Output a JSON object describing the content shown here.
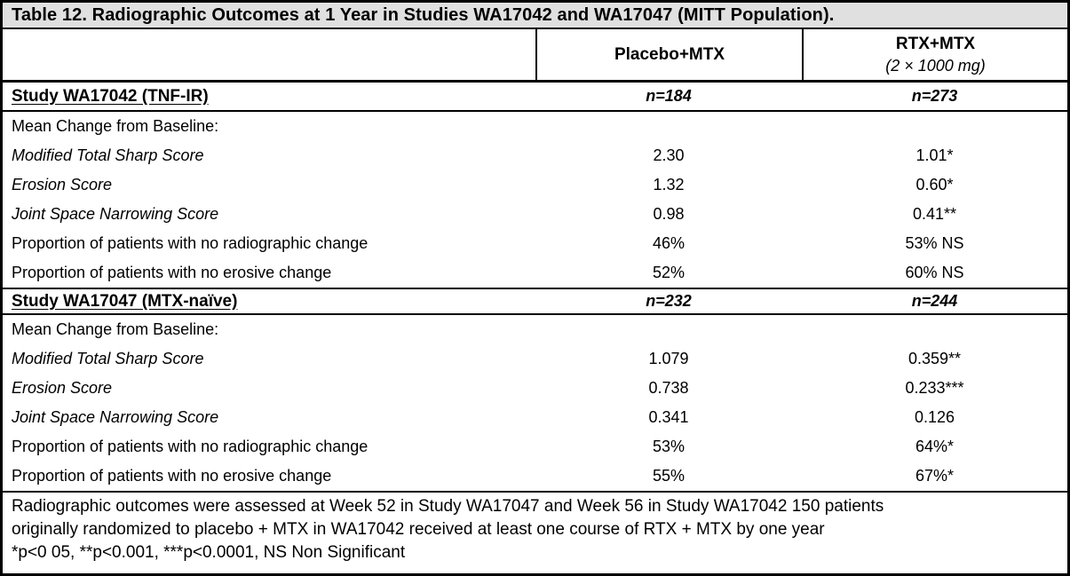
{
  "table": {
    "title": "Table 12. Radiographic Outcomes at 1 Year in Studies WA17042 and WA17047 (MITT Population).",
    "columns": {
      "placebo": "Placebo+MTX",
      "rtx_line1": "RTX+MTX",
      "rtx_line2": "(2 × 1000 mg)"
    },
    "sections": [
      {
        "study": "Study WA17042 (TNF-IR)",
        "n_placebo": "n=184",
        "n_rtx": "n=273",
        "rows": [
          {
            "label": "Mean Change from Baseline:",
            "placebo": "",
            "rtx": ""
          },
          {
            "label": "Modified Total Sharp Score",
            "placebo": "2.30",
            "rtx": "1.01*"
          },
          {
            "label": "Erosion Score",
            "placebo": "1.32",
            "rtx": "0.60*"
          },
          {
            "label": "Joint Space Narrowing Score",
            "placebo": "0.98",
            "rtx": "0.41**"
          },
          {
            "label": "Proportion of patients with no radiographic change",
            "placebo": "46%",
            "rtx": "53% NS"
          },
          {
            "label": "Proportion of patients with no erosive change",
            "placebo": "52%",
            "rtx": "60% NS"
          }
        ]
      },
      {
        "study": "Study WA17047 (MTX-naïve)",
        "n_placebo": "n=232",
        "n_rtx": "n=244",
        "rows": [
          {
            "label": "Mean Change from Baseline:",
            "placebo": "",
            "rtx": ""
          },
          {
            "label": "Modified Total Sharp Score",
            "placebo": "1.079",
            "rtx": "0.359**"
          },
          {
            "label": "Erosion Score",
            "placebo": "0.738",
            "rtx": "0.233***"
          },
          {
            "label": "Joint Space Narrowing Score",
            "placebo": "0.341",
            "rtx": "0.126"
          },
          {
            "label": "Proportion of patients with no radiographic change",
            "placebo": "53%",
            "rtx": "64%*"
          },
          {
            "label": "Proportion of patients with no erosive change",
            "placebo": "55%",
            "rtx": "67%*"
          }
        ]
      }
    ],
    "footnote_lines": [
      "Radiographic outcomes were assessed at Week 52 in Study WA17047 and Week 56 in Study WA17042 150 patients",
      "originally randomized to placebo + MTX in WA17042 received at least one course of RTX + MTX by one year",
      "*p<0 05, **p<0.001, ***p<0.0001, NS Non Significant"
    ]
  },
  "colors": {
    "title_bg": "#e0e0e0",
    "border": "#000000",
    "text": "#000000",
    "background": "#ffffff"
  }
}
